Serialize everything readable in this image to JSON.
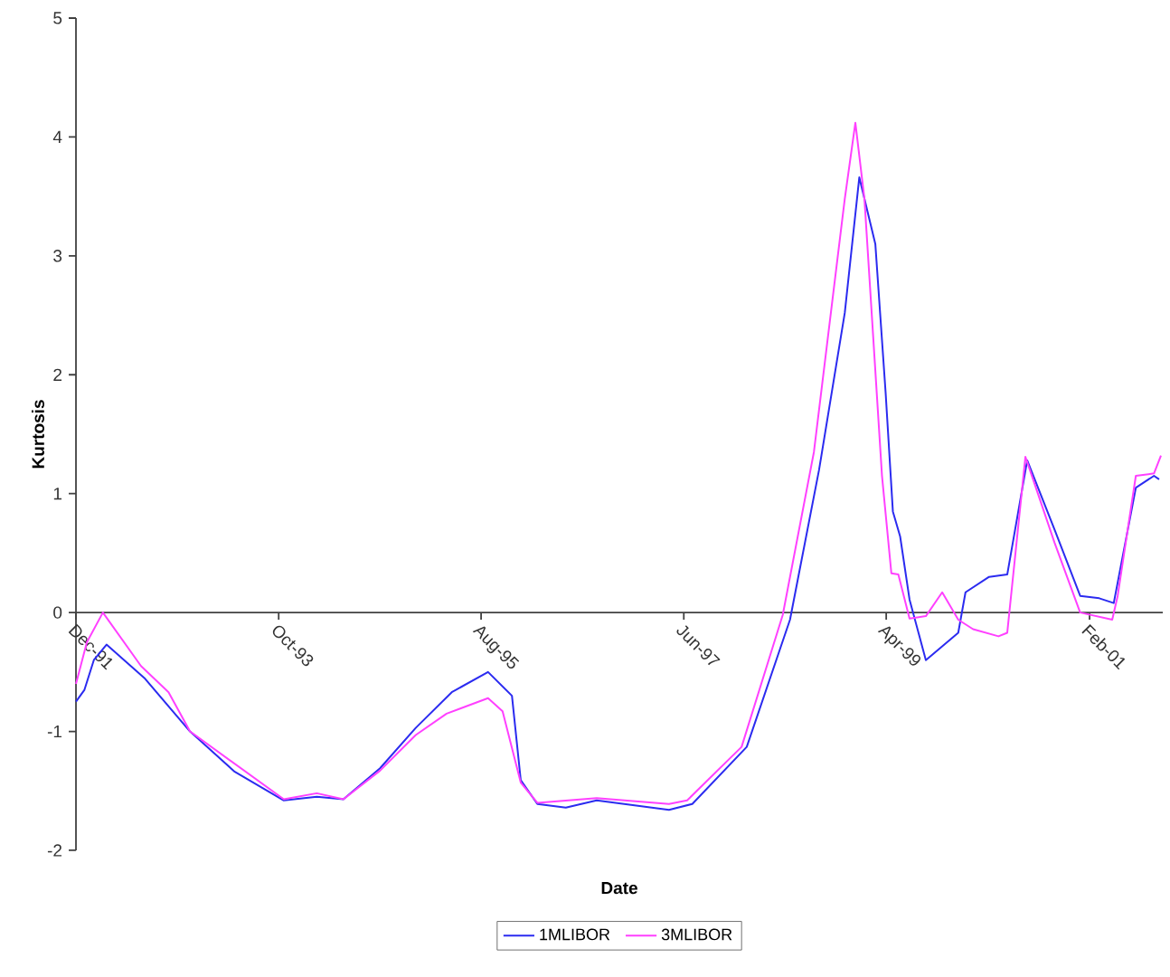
{
  "chart_data": {
    "type": "line",
    "xlabel": "Date",
    "ylabel": "Kurtosis",
    "xlim": [
      "1991-12-01",
      "2001-10-01"
    ],
    "ylim": [
      -2,
      5
    ],
    "yticks": [
      -2,
      -1,
      0,
      1,
      2,
      3,
      4,
      5
    ],
    "xticks": [
      {
        "value": "1991-12",
        "label": "Dec-91"
      },
      {
        "value": "1993-10",
        "label": "Oct-93"
      },
      {
        "value": "1995-08",
        "label": "Aug-95"
      },
      {
        "value": "1997-06",
        "label": "Jun-97"
      },
      {
        "value": "1999-04",
        "label": "Apr-99"
      },
      {
        "value": "2001-02",
        "label": "Feb-01"
      }
    ],
    "legend": "bottom",
    "line_style": "solid",
    "series": [
      {
        "name": "1MLIBOR",
        "color": "#2b2bf0",
        "x": [
          "1991-12-01",
          "1991-12-29",
          "1992-01-29",
          "1992-03-11",
          "1992-07-14",
          "1992-12-12",
          "1993-05-09",
          "1993-10-18",
          "1994-02-04",
          "1994-05-03",
          "1994-09-01",
          "1994-12-28",
          "1995-04-26",
          "1995-08-24",
          "1995-11-11",
          "1995-12-10",
          "1996-02-03",
          "1996-05-07",
          "1996-08-17",
          "1997-04-13",
          "1997-06-29",
          "1997-12-26",
          "1998-05-18",
          "1998-08-22",
          "1998-11-15",
          "1999-01-02",
          "1999-02-24",
          "1999-03-30",
          "1999-04-23",
          "1999-05-17",
          "1999-06-17",
          "1999-08-10",
          "1999-11-25",
          "1999-12-19",
          "2000-03-06",
          "2000-05-05",
          "2000-07-10",
          "2000-10-08",
          "2001-01-01",
          "2001-03-05",
          "2001-04-22",
          "2001-07-04",
          "2001-09-02",
          "2001-09-19"
        ],
        "values": [
          -0.75,
          -0.65,
          -0.4,
          -0.27,
          -0.55,
          -1.0,
          -1.34,
          -1.58,
          -1.55,
          -1.57,
          -1.31,
          -0.97,
          -0.67,
          -0.5,
          -0.7,
          -1.41,
          -1.61,
          -1.64,
          -1.58,
          -1.66,
          -1.61,
          -1.13,
          -0.06,
          1.2,
          2.52,
          3.66,
          3.1,
          1.85,
          0.85,
          0.64,
          0.11,
          -0.4,
          -0.17,
          0.17,
          0.3,
          0.32,
          1.28,
          0.7,
          0.14,
          0.12,
          0.08,
          1.05,
          1.15,
          1.12
        ]
      },
      {
        "name": "3MLIBOR",
        "color": "#ff40ff",
        "x": [
          "1991-12-01",
          "1992-01-06",
          "1992-02-28",
          "1992-07-03",
          "1992-10-02",
          "1992-12-12",
          "1993-10-18",
          "1994-02-04",
          "1994-05-03",
          "1994-09-01",
          "1994-12-28",
          "1995-04-09",
          "1995-08-24",
          "1995-10-11",
          "1995-12-10",
          "1996-02-03",
          "1996-08-17",
          "1997-04-13",
          "1997-06-12",
          "1997-12-09",
          "1998-04-24",
          "1998-08-05",
          "1998-11-15",
          "1998-12-20",
          "1999-01-19",
          "1999-03-18",
          "1999-04-18",
          "1999-05-11",
          "1999-06-17",
          "1999-08-10",
          "1999-10-03",
          "1999-11-25",
          "2000-01-13",
          "2000-04-06",
          "2000-05-05",
          "2000-07-04",
          "2000-10-08",
          "2001-01-01",
          "2001-04-17",
          "2001-05-05",
          "2001-07-04",
          "2001-09-02",
          "2001-09-25"
        ],
        "values": [
          -0.6,
          -0.25,
          0.0,
          -0.45,
          -0.67,
          -1.0,
          -1.57,
          -1.52,
          -1.57,
          -1.33,
          -1.03,
          -0.85,
          -0.72,
          -0.83,
          -1.43,
          -1.6,
          -1.56,
          -1.61,
          -1.58,
          -1.13,
          -0.02,
          1.35,
          3.48,
          4.12,
          3.48,
          1.15,
          0.33,
          0.32,
          -0.05,
          -0.03,
          0.17,
          -0.06,
          -0.14,
          -0.2,
          -0.17,
          1.31,
          0.59,
          0.0,
          -0.06,
          0.14,
          1.15,
          1.17,
          1.32
        ]
      }
    ]
  }
}
